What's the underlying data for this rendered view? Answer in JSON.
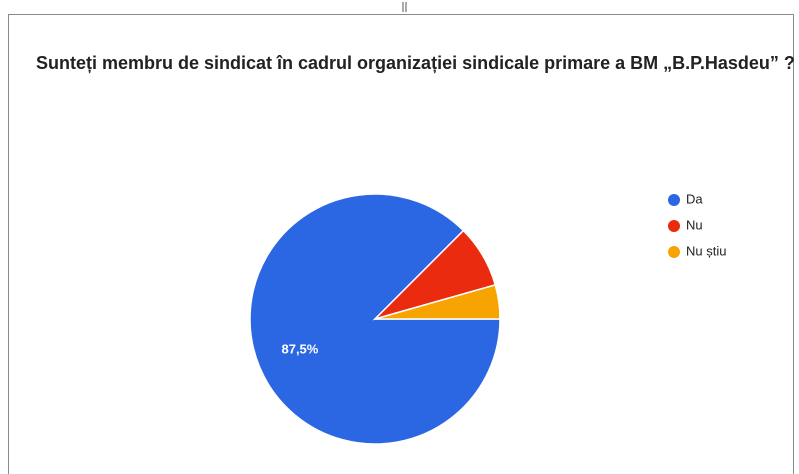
{
  "chart_data": {
    "type": "pie",
    "title": "Sunteți membru de sindicat în cadrul organizației sindicale primare a BM „B.P.Hasdeu” ?",
    "categories": [
      "Da",
      "Nu",
      "Nu știu"
    ],
    "values": [
      87.5,
      8.1,
      4.4
    ],
    "value_labels": [
      "87,5%",
      null,
      null
    ],
    "colors": [
      "#2b66e3",
      "#ea2b0f",
      "#f7a400"
    ],
    "legend": "right"
  }
}
